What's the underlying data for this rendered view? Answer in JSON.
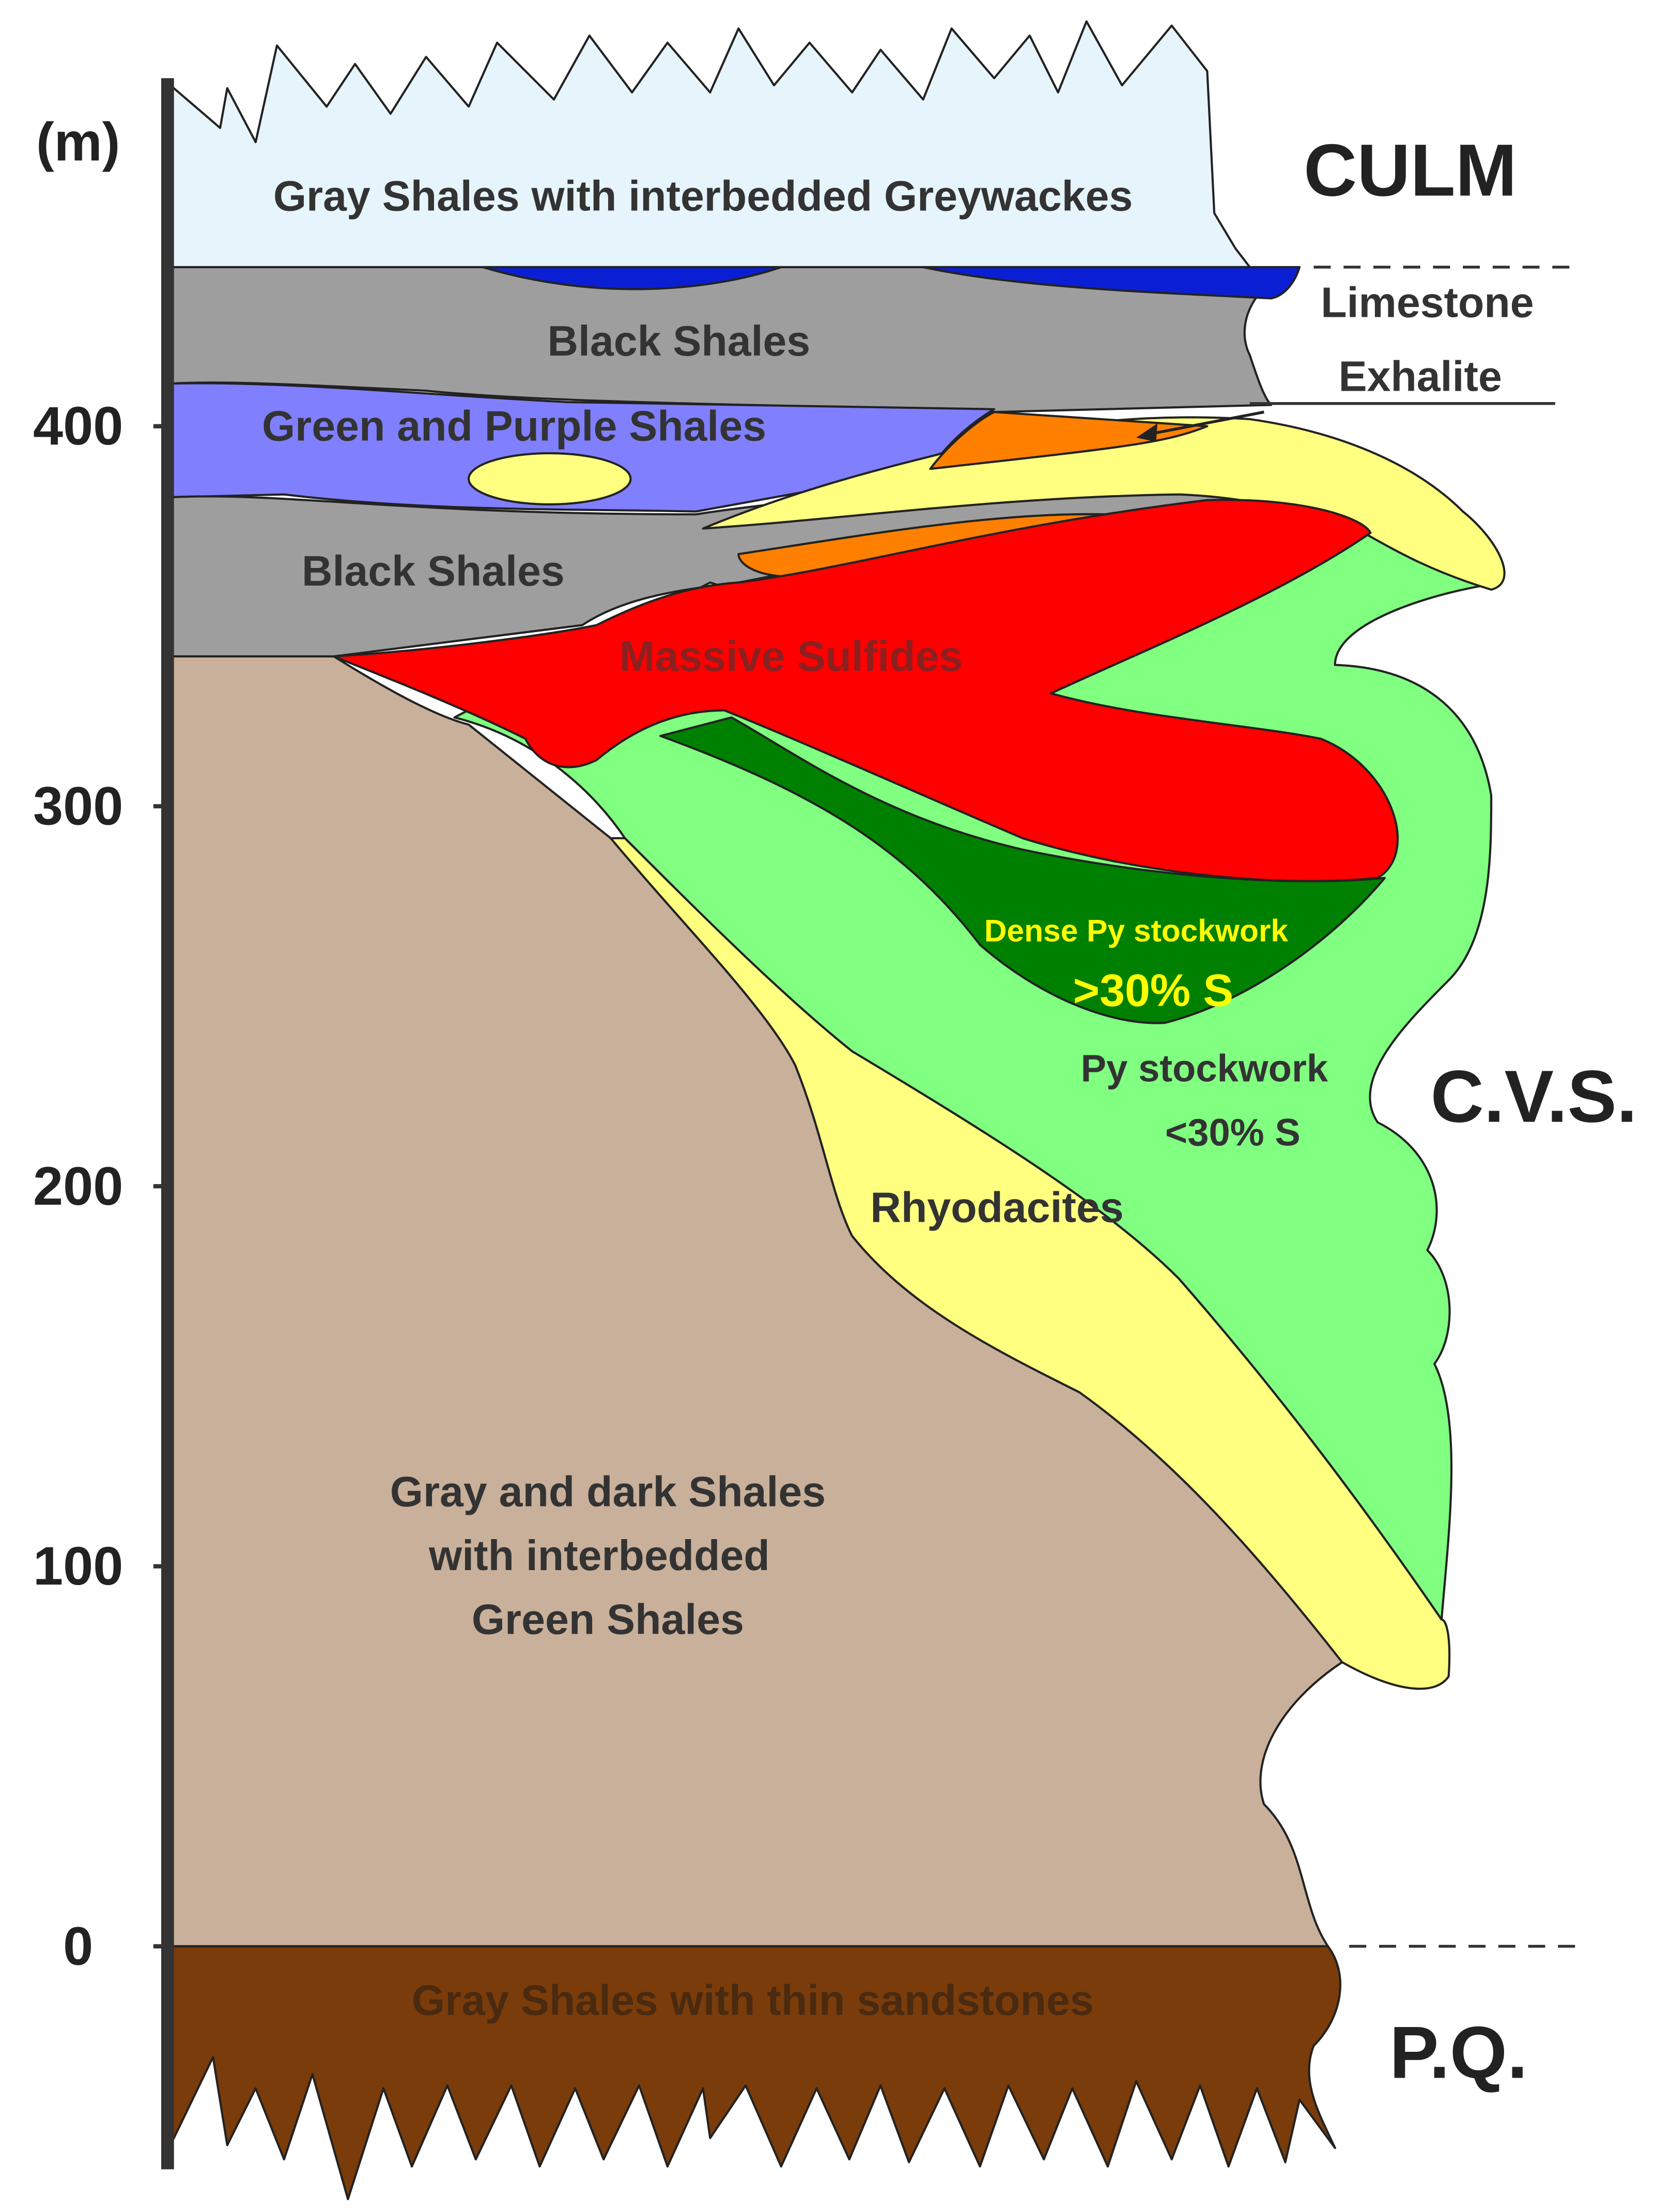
{
  "axis": {
    "unit": "(m)",
    "ticks": [
      0,
      100,
      200,
      300,
      400
    ]
  },
  "units": [
    "CULM",
    "C.V.S.",
    "P.Q."
  ],
  "layers": {
    "culm_shales": "Gray Shales with interbedded Greywackes",
    "black_shales_upper": "Black Shales",
    "green_purple": "Green and Purple Shales",
    "black_shales_lower": "Black Shales",
    "massive_sulfides": "Massive Sulfides",
    "dense_stockwork": [
      "Dense Py stockwork",
      ">30% S"
    ],
    "stockwork": [
      "Py stockwork",
      "<30% S"
    ],
    "rhyodacites": "Rhyodacites",
    "gray_dark_shales": [
      "Gray and dark Shales",
      "with interbedded",
      "Green Shales"
    ],
    "pq_shales": "Gray Shales with thin sandstones"
  },
  "callout": [
    "Limestone",
    "Exhalite"
  ]
}
